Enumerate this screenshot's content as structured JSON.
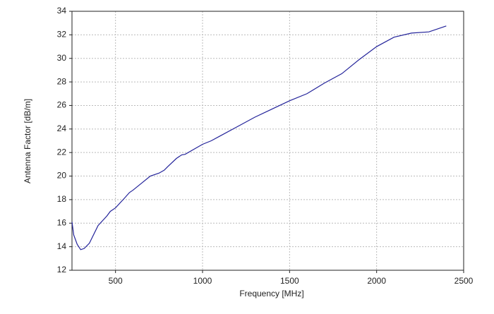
{
  "chart_data": {
    "type": "line",
    "x_label": "Frequency [MHz]",
    "y_label": "Antenna Factor [dB/m]",
    "x": [
      250,
      260,
      280,
      300,
      320,
      350,
      400,
      450,
      470,
      500,
      550,
      580,
      600,
      650,
      700,
      750,
      780,
      800,
      850,
      880,
      900,
      1000,
      1050,
      1100,
      1200,
      1300,
      1400,
      1500,
      1600,
      1700,
      1800,
      1900,
      2000,
      2100,
      2200,
      2300,
      2400
    ],
    "series": [
      {
        "name": "Antenna Factor",
        "color": "#23239a",
        "values": [
          16.1,
          15.0,
          14.2,
          13.75,
          13.85,
          14.3,
          15.8,
          16.6,
          17.0,
          17.3,
          18.1,
          18.6,
          18.8,
          19.4,
          20.0,
          20.25,
          20.5,
          20.8,
          21.5,
          21.8,
          21.85,
          22.7,
          23.0,
          23.4,
          24.2,
          25.0,
          25.7,
          26.4,
          27.0,
          27.9,
          28.7,
          29.9,
          31.0,
          31.8,
          32.15,
          32.25,
          32.75
        ]
      }
    ],
    "xlim": [
      250,
      2500
    ],
    "xticks": [
      500,
      1000,
      1500,
      2000,
      2500
    ],
    "ylim": [
      12,
      34
    ],
    "yticks": [
      12,
      14,
      16,
      18,
      20,
      22,
      24,
      26,
      28,
      30,
      32,
      34
    ],
    "grid": true
  }
}
